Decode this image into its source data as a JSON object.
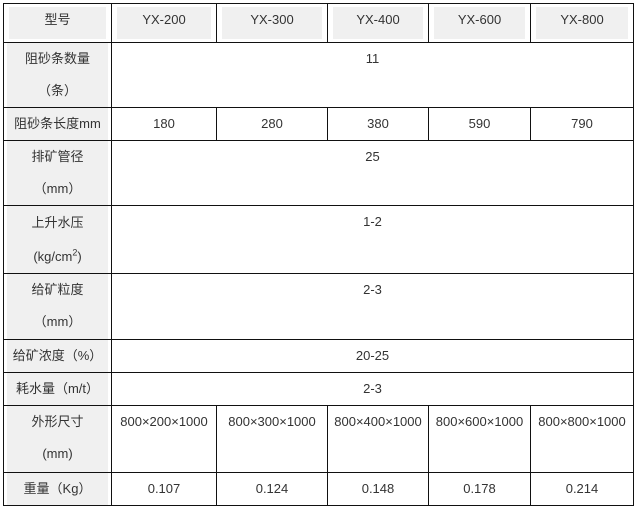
{
  "table": {
    "header": [
      "型号",
      "YX-200",
      "YX-300",
      "YX-400",
      "YX-600",
      "YX-800"
    ],
    "rows": [
      {
        "label": [
          "阻砂条数量",
          "（条）"
        ],
        "merged": "11"
      },
      {
        "label": [
          "阻砂条长度mm"
        ],
        "values": [
          "180",
          "280",
          "380",
          "590",
          "790"
        ]
      },
      {
        "label": [
          "排矿管径",
          "（mm）"
        ],
        "merged": "25"
      },
      {
        "label": [
          "上升水压",
          "(kg/cm",
          "2",
          ")"
        ],
        "merged": "1-2"
      },
      {
        "label": [
          "给矿粒度",
          "（mm）"
        ],
        "merged": "2-3"
      },
      {
        "label": [
          "给矿浓度（%）"
        ],
        "merged": "20-25"
      },
      {
        "label": [
          "耗水量（m/t）"
        ],
        "merged": "2-3"
      },
      {
        "label": [
          "外形尺寸",
          "(mm)"
        ],
        "values": [
          "800×200×1000",
          "800×300×1000",
          "800×400×1000",
          "800×600×1000",
          "800×800×1000"
        ]
      },
      {
        "label": [
          "重量（Kg）"
        ],
        "values": [
          "0.107",
          "0.124",
          "0.148",
          "0.178",
          "0.214"
        ]
      }
    ]
  }
}
